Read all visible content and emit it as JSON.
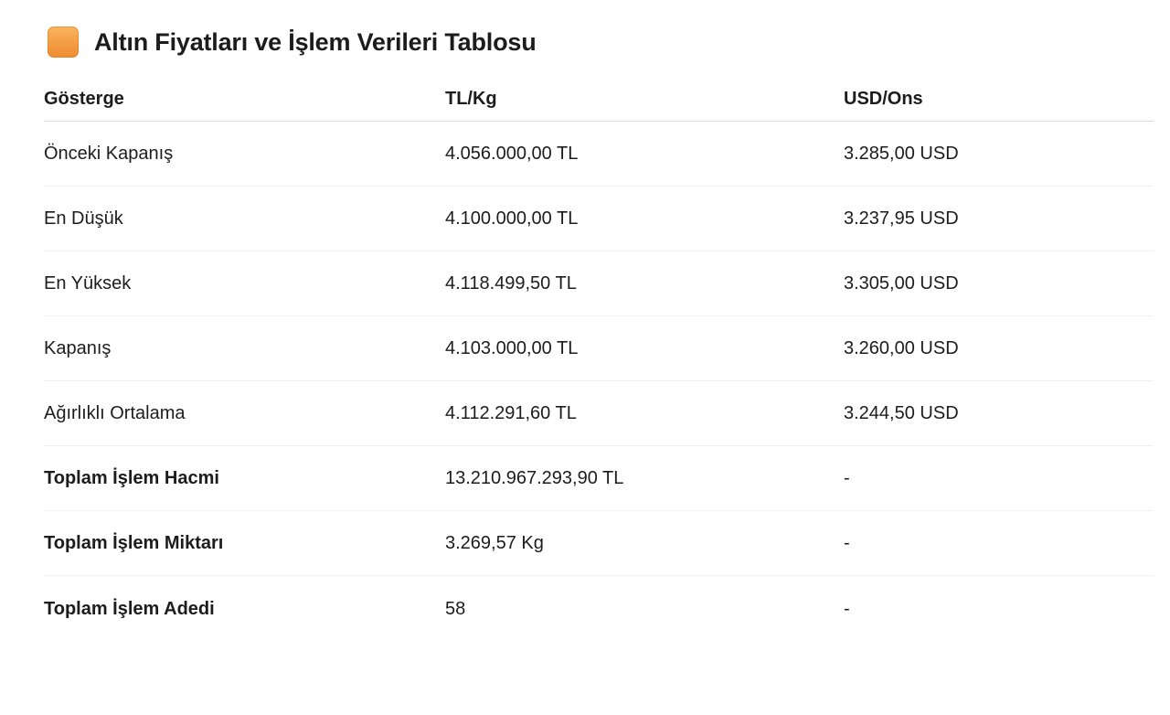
{
  "page": {
    "title": "Altın Fiyatları ve İşlem Verileri Tablosu",
    "title_icon": "orange-rounded-square"
  },
  "colors": {
    "background": "#ffffff",
    "text": "#1c1c1c",
    "icon_orange_top": "#f9b55e",
    "icon_orange_bottom": "#ee8c31",
    "header_divider": "#d9d9d9",
    "row_divider": "#f0f0f0"
  },
  "table": {
    "columns": [
      {
        "key": "gosterge",
        "label": "Gösterge"
      },
      {
        "key": "tl_kg",
        "label": "TL/Kg"
      },
      {
        "key": "usd_ons",
        "label": "USD/Ons"
      }
    ],
    "rows": [
      {
        "gosterge": "Önceki Kapanış",
        "tl_kg": "4.056.000,00 TL",
        "usd_ons": "3.285,00 USD",
        "bold": false
      },
      {
        "gosterge": "En Düşük",
        "tl_kg": "4.100.000,00 TL",
        "usd_ons": "3.237,95 USD",
        "bold": false
      },
      {
        "gosterge": "En Yüksek",
        "tl_kg": "4.118.499,50 TL",
        "usd_ons": "3.305,00 USD",
        "bold": false
      },
      {
        "gosterge": "Kapanış",
        "tl_kg": "4.103.000,00 TL",
        "usd_ons": "3.260,00 USD",
        "bold": false
      },
      {
        "gosterge": "Ağırlıklı Ortalama",
        "tl_kg": "4.112.291,60 TL",
        "usd_ons": "3.244,50 USD",
        "bold": false
      },
      {
        "gosterge": "Toplam İşlem Hacmi",
        "tl_kg": "13.210.967.293,90 TL",
        "usd_ons": "-",
        "bold": true
      },
      {
        "gosterge": "Toplam İşlem Miktarı",
        "tl_kg": "3.269,57 Kg",
        "usd_ons": "-",
        "bold": true
      },
      {
        "gosterge": "Toplam İşlem Adedi",
        "tl_kg": "58",
        "usd_ons": "-",
        "bold": true
      }
    ]
  },
  "chart_data": {
    "type": "table",
    "title": "Altın Fiyatları ve İşlem Verileri Tablosu",
    "columns": [
      "Gösterge",
      "TL/Kg",
      "USD/Ons"
    ],
    "rows": [
      [
        "Önceki Kapanış",
        "4.056.000,00 TL",
        "3.285,00 USD"
      ],
      [
        "En Düşük",
        "4.100.000,00 TL",
        "3.237,95 USD"
      ],
      [
        "En Yüksek",
        "4.118.499,50 TL",
        "3.305,00 USD"
      ],
      [
        "Kapanış",
        "4.103.000,00 TL",
        "3.260,00 USD"
      ],
      [
        "Ağırlıklı Ortalama",
        "4.112.291,60 TL",
        "3.244,50 USD"
      ],
      [
        "Toplam İşlem Hacmi",
        "13.210.967.293,90 TL",
        "-"
      ],
      [
        "Toplam İşlem Miktarı",
        "3.269,57 Kg",
        "-"
      ],
      [
        "Toplam İşlem Adedi",
        "58",
        "-"
      ]
    ],
    "tl_kg_values": [
      4056000.0,
      4100000.0,
      4118499.5,
      4103000.0,
      4112291.6,
      13210967293.9,
      3269.57,
      58
    ],
    "usd_ons_values": [
      3285.0,
      3237.95,
      3305.0,
      3260.0,
      3244.5,
      null,
      null,
      null
    ]
  }
}
